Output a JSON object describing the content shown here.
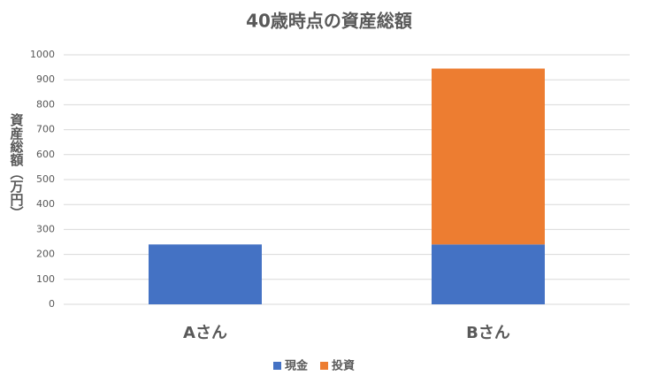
{
  "chart_data": {
    "type": "stacked_bar",
    "title": "40歳時点の資産総額",
    "y_label": "資産総額（万円）",
    "categories": [
      "Aさん",
      "Bさん"
    ],
    "series": [
      {
        "name": "現金",
        "color": "#4472c4",
        "values": [
          240,
          240
        ]
      },
      {
        "name": "投資",
        "color": "#ed7d31",
        "values": [
          0,
          705
        ]
      }
    ],
    "ylim": [
      0,
      1000
    ],
    "yticks": [
      0,
      100,
      200,
      300,
      400,
      500,
      600,
      700,
      800,
      900,
      1000
    ],
    "grid": true,
    "legend": "bottom"
  }
}
